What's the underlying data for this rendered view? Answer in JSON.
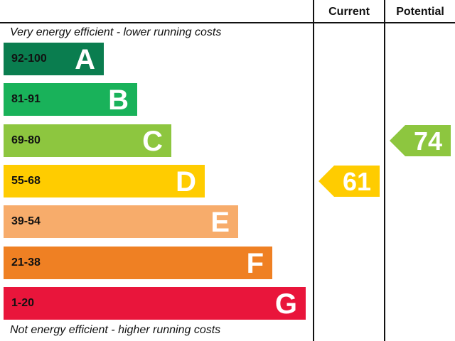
{
  "chart_data": {
    "type": "bar",
    "headers": {
      "current": "Current",
      "potential": "Potential"
    },
    "top_caption": "Very energy efficient - lower running costs",
    "bottom_caption": "Not energy efficient - higher running costs",
    "bands": [
      {
        "letter": "A",
        "range": "92-100",
        "color": "#0a7d4f"
      },
      {
        "letter": "B",
        "range": "81-91",
        "color": "#19b25a"
      },
      {
        "letter": "C",
        "range": "69-80",
        "color": "#8dc63f"
      },
      {
        "letter": "D",
        "range": "55-68",
        "color": "#ffcc00"
      },
      {
        "letter": "E",
        "range": "39-54",
        "color": "#f7ac6b"
      },
      {
        "letter": "F",
        "range": "21-38",
        "color": "#ef8023"
      },
      {
        "letter": "G",
        "range": "1-20",
        "color": "#e9153b"
      }
    ],
    "current": {
      "value": 61,
      "band": "D",
      "color": "#ffcc00"
    },
    "potential": {
      "value": 74,
      "band": "C",
      "color": "#8dc63f"
    }
  }
}
